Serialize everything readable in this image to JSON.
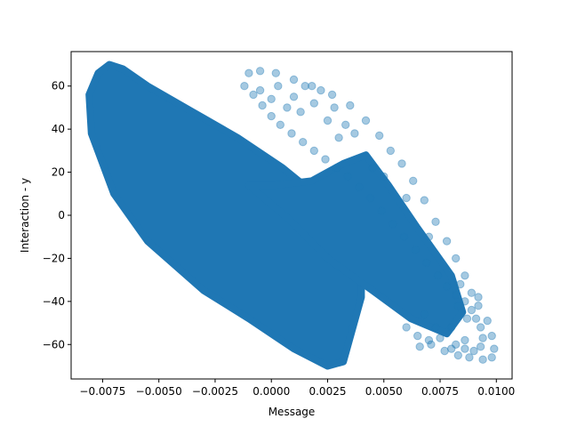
{
  "chart_data": {
    "type": "scatter",
    "title": "",
    "xlabel": "Message",
    "ylabel": "Interaction - y",
    "xlim": [
      -0.0089,
      0.0107
    ],
    "ylim": [
      -76,
      76
    ],
    "xticks": [
      -0.0075,
      -0.005,
      -0.0025,
      0.0,
      0.0025,
      0.005,
      0.0075,
      0.01
    ],
    "xtick_labels": [
      "−0.0075",
      "−0.0050",
      "−0.0025",
      "0.0000",
      "0.0025",
      "0.0050",
      "0.0075",
      "0.0100"
    ],
    "yticks": [
      -60,
      -40,
      -20,
      0,
      20,
      40,
      60
    ],
    "ytick_labels": [
      "−60",
      "−40",
      "−20",
      "0",
      "20",
      "40",
      "60"
    ],
    "grid": false,
    "legend": "none",
    "marker_alpha": 0.4,
    "colors": {
      "points": "#1f77b4"
    },
    "series": [
      {
        "dense_band_1_outline": [
          [
            -0.0081,
            56
          ],
          [
            -0.0077,
            66
          ],
          [
            -0.0072,
            70
          ],
          [
            -0.0066,
            68
          ],
          [
            -0.0055,
            60
          ],
          [
            -0.0035,
            48
          ],
          [
            -0.0015,
            36
          ],
          [
            0.0005,
            22
          ],
          [
            0.0025,
            5
          ],
          [
            0.004,
            -5
          ],
          [
            0.004,
            -38
          ],
          [
            0.0032,
            -68
          ],
          [
            0.0025,
            -70
          ],
          [
            0.001,
            -62
          ],
          [
            -0.001,
            -48
          ],
          [
            -0.003,
            -35
          ],
          [
            -0.0055,
            -12
          ],
          [
            -0.007,
            10
          ],
          [
            -0.008,
            38
          ],
          [
            -0.0081,
            56
          ]
        ],
        "dense_band_2_outline": [
          [
            -0.001,
            14
          ],
          [
            0.0002,
            14
          ],
          [
            0.0018,
            16
          ],
          [
            0.0032,
            24
          ],
          [
            0.0042,
            28
          ],
          [
            0.0052,
            14
          ],
          [
            0.0065,
            -6
          ],
          [
            0.008,
            -28
          ],
          [
            0.0085,
            -45
          ],
          [
            0.0078,
            -55
          ],
          [
            0.0062,
            -48
          ],
          [
            0.0045,
            -35
          ],
          [
            0.0025,
            -20
          ],
          [
            0.0008,
            -2
          ],
          [
            -0.001,
            14
          ]
        ],
        "outer_loop": [
          [
            -0.001,
            66
          ],
          [
            -0.0005,
            67
          ],
          [
            0.0002,
            66
          ],
          [
            0.001,
            63
          ],
          [
            0.0018,
            60
          ],
          [
            0.0027,
            56
          ],
          [
            0.0035,
            51
          ],
          [
            0.0042,
            44
          ],
          [
            0.0048,
            37
          ],
          [
            0.0053,
            30
          ],
          [
            0.0058,
            24
          ],
          [
            0.0063,
            16
          ],
          [
            0.0068,
            7
          ],
          [
            0.0073,
            -3
          ],
          [
            0.0078,
            -12
          ],
          [
            0.0082,
            -20
          ],
          [
            0.0086,
            -28
          ],
          [
            0.0089,
            -36
          ],
          [
            0.0092,
            -42
          ],
          [
            0.0096,
            -49
          ],
          [
            0.0098,
            -56
          ],
          [
            0.0099,
            -62
          ],
          [
            0.0098,
            -66
          ],
          [
            0.0094,
            -67
          ],
          [
            0.0088,
            -66
          ],
          [
            0.0083,
            -65
          ],
          [
            0.0077,
            -63
          ],
          [
            0.0071,
            -60
          ],
          [
            0.0065,
            -56
          ],
          [
            0.006,
            -52
          ]
        ],
        "inner_loop": [
          [
            -0.0012,
            60
          ],
          [
            -0.0008,
            56
          ],
          [
            -0.0004,
            51
          ],
          [
            0.0,
            46
          ],
          [
            0.0004,
            42
          ],
          [
            0.0009,
            38
          ],
          [
            0.0014,
            34
          ],
          [
            0.0019,
            30
          ],
          [
            0.0024,
            26
          ],
          [
            0.0029,
            22
          ],
          [
            0.0034,
            18
          ],
          [
            0.0039,
            13
          ],
          [
            0.0044,
            8
          ],
          [
            0.0049,
            2
          ],
          [
            0.0054,
            -4
          ],
          [
            0.0059,
            -10
          ],
          [
            0.0064,
            -16
          ],
          [
            0.0069,
            -22
          ],
          [
            0.0074,
            -28
          ],
          [
            0.0078,
            -33
          ],
          [
            0.0082,
            -37
          ],
          [
            0.0086,
            -40
          ],
          [
            0.0089,
            -44
          ],
          [
            0.0091,
            -48
          ],
          [
            0.0093,
            -52
          ],
          [
            0.0094,
            -57
          ],
          [
            0.0093,
            -61
          ],
          [
            0.009,
            -63
          ],
          [
            0.0086,
            -62
          ],
          [
            0.0082,
            -60
          ]
        ],
        "scattered_points": [
          [
            0.0015,
            60
          ],
          [
            0.0022,
            58
          ],
          [
            0.0028,
            50
          ],
          [
            0.0033,
            42
          ],
          [
            0.0037,
            38
          ],
          [
            0.0019,
            52
          ],
          [
            0.001,
            55
          ],
          [
            0.0003,
            60
          ],
          [
            0.0007,
            50
          ],
          [
            0.0013,
            48
          ],
          [
            -0.0005,
            58
          ],
          [
            0.0,
            54
          ],
          [
            0.0025,
            44
          ],
          [
            0.003,
            36
          ],
          [
            0.0045,
            22
          ],
          [
            0.005,
            18
          ],
          [
            0.006,
            8
          ],
          [
            0.007,
            -10
          ],
          [
            0.0084,
            -32
          ],
          [
            0.0087,
            -48
          ],
          [
            0.008,
            -52
          ],
          [
            0.0075,
            -57
          ],
          [
            0.007,
            -58
          ],
          [
            0.0066,
            -61
          ],
          [
            0.0083,
            -42
          ],
          [
            0.0092,
            -38
          ],
          [
            0.0086,
            -58
          ],
          [
            0.008,
            -62
          ],
          [
            0.0073,
            -52
          ],
          [
            0.0068,
            -46
          ]
        ]
      }
    ]
  }
}
